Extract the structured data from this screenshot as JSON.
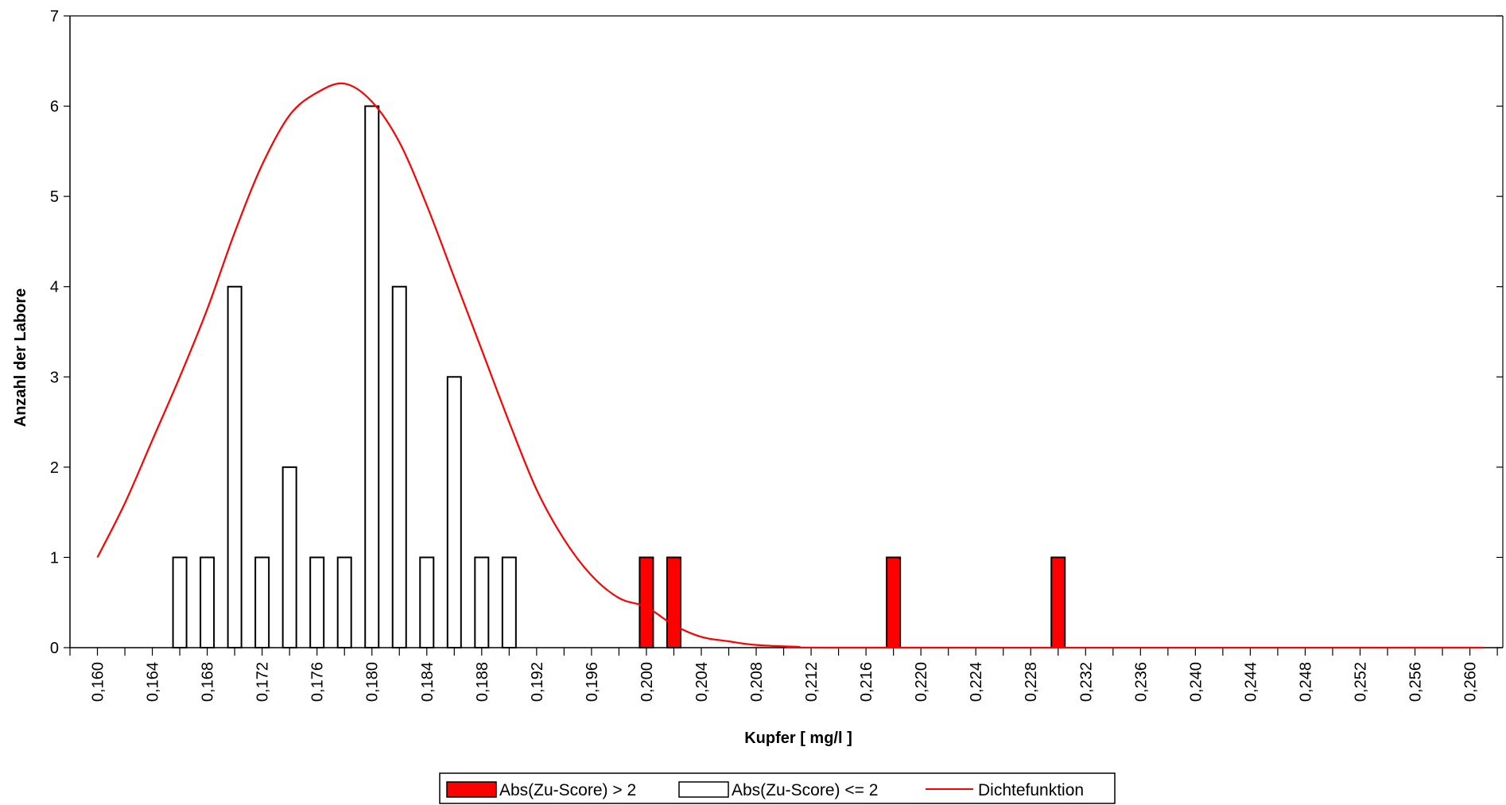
{
  "chart_data": {
    "type": "bar",
    "xlabel": "Kupfer [ mg/l ]",
    "ylabel": "Anzahl der Labore",
    "ylim": [
      0,
      7
    ],
    "y_ticks": [
      0,
      1,
      2,
      3,
      4,
      5,
      6,
      7
    ],
    "x_tick_labels": [
      "0,160",
      "0,164",
      "0,168",
      "0,172",
      "0,176",
      "0,180",
      "0,184",
      "0,188",
      "0,192",
      "0,196",
      "0,200",
      "0,204",
      "0,208",
      "0,212",
      "0,216",
      "0,220",
      "0,224",
      "0,228",
      "0,232",
      "0,236",
      "0,240",
      "0,244",
      "0,248",
      "0,252",
      "0,256",
      "0,260"
    ],
    "series": [
      {
        "name": "Abs(Zu-Score) > 2",
        "color": "#ff0000",
        "points": [
          {
            "x": 0.2,
            "y": 1
          },
          {
            "x": 0.202,
            "y": 1
          },
          {
            "x": 0.218,
            "y": 1
          },
          {
            "x": 0.23,
            "y": 1
          }
        ]
      },
      {
        "name": "Abs(Zu-Score) <= 2",
        "color": "#ffffff",
        "points": [
          {
            "x": 0.166,
            "y": 1
          },
          {
            "x": 0.168,
            "y": 1
          },
          {
            "x": 0.17,
            "y": 4
          },
          {
            "x": 0.172,
            "y": 1
          },
          {
            "x": 0.174,
            "y": 2
          },
          {
            "x": 0.176,
            "y": 1
          },
          {
            "x": 0.178,
            "y": 1
          },
          {
            "x": 0.18,
            "y": 6
          },
          {
            "x": 0.182,
            "y": 4
          },
          {
            "x": 0.184,
            "y": 1
          },
          {
            "x": 0.186,
            "y": 3
          },
          {
            "x": 0.188,
            "y": 1
          },
          {
            "x": 0.19,
            "y": 1
          }
        ]
      },
      {
        "name": "Dichtefunktion",
        "type": "line",
        "color": "#ff0000",
        "points": [
          {
            "x": 0.161,
            "y": 1.0
          },
          {
            "x": 0.163,
            "y": 1.6
          },
          {
            "x": 0.165,
            "y": 2.3
          },
          {
            "x": 0.167,
            "y": 3.0
          },
          {
            "x": 0.169,
            "y": 3.75
          },
          {
            "x": 0.171,
            "y": 4.6
          },
          {
            "x": 0.173,
            "y": 5.35
          },
          {
            "x": 0.175,
            "y": 5.9
          },
          {
            "x": 0.177,
            "y": 6.15
          },
          {
            "x": 0.179,
            "y": 6.25
          },
          {
            "x": 0.181,
            "y": 6.05
          },
          {
            "x": 0.183,
            "y": 5.6
          },
          {
            "x": 0.185,
            "y": 4.9
          },
          {
            "x": 0.187,
            "y": 4.1
          },
          {
            "x": 0.189,
            "y": 3.3
          },
          {
            "x": 0.191,
            "y": 2.5
          },
          {
            "x": 0.193,
            "y": 1.75
          },
          {
            "x": 0.195,
            "y": 1.2
          },
          {
            "x": 0.197,
            "y": 0.8
          },
          {
            "x": 0.199,
            "y": 0.55
          },
          {
            "x": 0.201,
            "y": 0.45
          },
          {
            "x": 0.203,
            "y": 0.25
          },
          {
            "x": 0.205,
            "y": 0.12
          },
          {
            "x": 0.207,
            "y": 0.07
          },
          {
            "x": 0.209,
            "y": 0.03
          },
          {
            "x": 0.212,
            "y": 0.01
          },
          {
            "x": 0.216,
            "y": 0.0
          },
          {
            "x": 0.262,
            "y": 0.0
          }
        ]
      }
    ],
    "legend_position": "bottom-center"
  }
}
